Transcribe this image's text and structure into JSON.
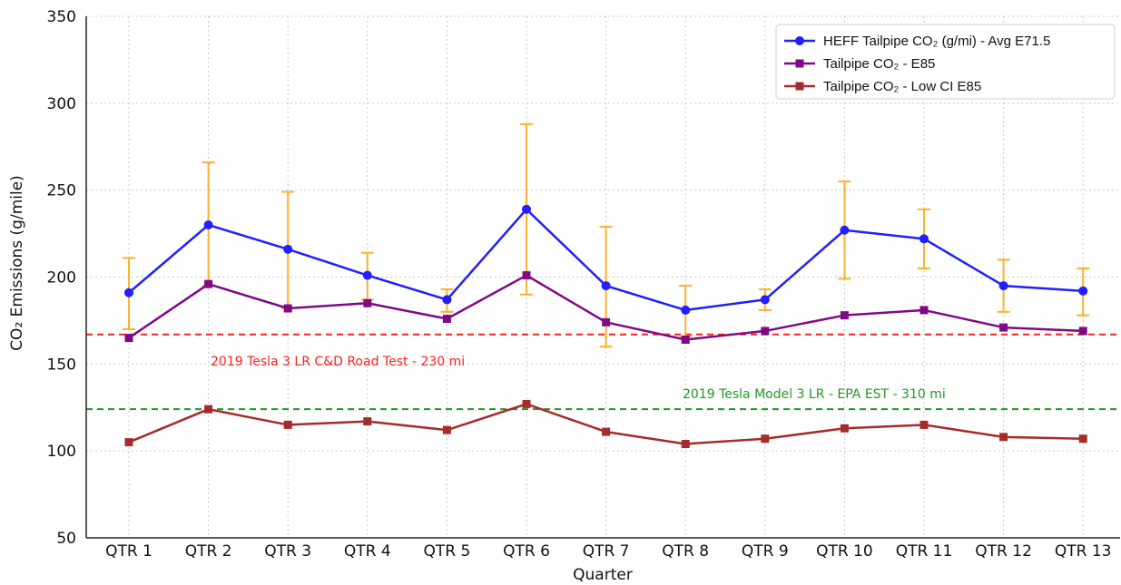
{
  "chart_data": {
    "type": "line",
    "xlabel": "Quarter",
    "ylabel": "CO₂ Emissions (g/mile)",
    "ylim": [
      50,
      350
    ],
    "yticks": [
      50,
      100,
      150,
      200,
      250,
      300,
      350
    ],
    "grid": true,
    "legend_position": "top-right",
    "categories": [
      "QTR 1",
      "QTR 2",
      "QTR 3",
      "QTR 4",
      "QTR 5",
      "QTR 6",
      "QTR 7",
      "QTR 8",
      "QTR 9",
      "QTR 10",
      "QTR 11",
      "QTR 12",
      "QTR 13"
    ],
    "series": [
      {
        "name": "HEFF Tailpipe CO₂ (g/mi) - Avg E71.5",
        "color": "#1f1fff",
        "marker": "circle",
        "values": [
          191,
          230,
          216,
          201,
          187,
          239,
          195,
          181,
          187,
          227,
          222,
          195,
          192
        ],
        "error_low": [
          170,
          195,
          182,
          187,
          180,
          190,
          160,
          166,
          181,
          199,
          205,
          180,
          178
        ],
        "error_high": [
          211,
          266,
          249,
          214,
          193,
          288,
          229,
          195,
          193,
          255,
          239,
          210,
          205
        ],
        "error_color": "#ffb02e"
      },
      {
        "name": "Tailpipe CO₂ - E85",
        "color": "#7f0a86",
        "marker": "square",
        "values": [
          165,
          196,
          182,
          185,
          176,
          201,
          174,
          164,
          169,
          178,
          181,
          171,
          169
        ]
      },
      {
        "name": "Tailpipe CO₂ - Low CI E85",
        "color": "#a62b2b",
        "marker": "square",
        "values": [
          105,
          124,
          115,
          117,
          112,
          127,
          111,
          104,
          107,
          113,
          115,
          108,
          107
        ]
      }
    ],
    "reference_lines": [
      {
        "label": "2019 Tesla 3 LR C&D Road Test - 230 mi",
        "y": 167,
        "color": "#ff2020"
      },
      {
        "label": "2019 Tesla Model 3 LR - EPA EST - 310 mi",
        "y": 124,
        "color": "#1f9a1f"
      }
    ]
  }
}
